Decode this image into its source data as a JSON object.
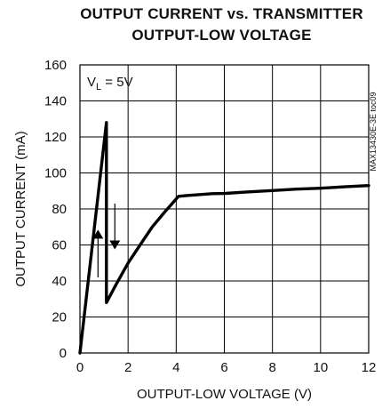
{
  "chart_data": {
    "type": "line",
    "title_line1": "OUTPUT CURRENT vs. TRANSMITTER",
    "title_line2": "OUTPUT-LOW VOLTAGE",
    "xlabel": "OUTPUT-LOW VOLTAGE (V)",
    "ylabel": "OUTPUT CURRENT (mA)",
    "xlim": [
      0,
      12
    ],
    "ylim": [
      0,
      160
    ],
    "xticks": [
      0,
      2,
      4,
      6,
      8,
      10,
      12
    ],
    "yticks": [
      0,
      20,
      40,
      60,
      80,
      100,
      120,
      140,
      160
    ],
    "grid": true,
    "annotation": "VL = 5V",
    "annotation_parts": {
      "v": "V",
      "sub": "L",
      "rest": " = 5V"
    },
    "side_note": "MAX13430E-3E toc09",
    "series": [
      {
        "points": [
          [
            0,
            0
          ],
          [
            1.1,
            128
          ],
          [
            1.1,
            28
          ],
          [
            1.5,
            38
          ],
          [
            2,
            50
          ],
          [
            2.5,
            60
          ],
          [
            3,
            70
          ],
          [
            3.5,
            78
          ],
          [
            4.1,
            87
          ],
          [
            4.5,
            87.5
          ],
          [
            5,
            88
          ],
          [
            5.5,
            88.5
          ],
          [
            6,
            88.6
          ],
          [
            7,
            89.5
          ],
          [
            8,
            90.2
          ],
          [
            9,
            91
          ],
          [
            10,
            91.5
          ],
          [
            11,
            92.3
          ],
          [
            12,
            93
          ]
        ],
        "color": "#000000"
      }
    ],
    "arrows": [
      {
        "x": 0.75,
        "y_from": 42,
        "y_to": 66,
        "direction": "up"
      },
      {
        "x": 1.45,
        "y_from": 83,
        "y_to": 60,
        "direction": "down"
      }
    ]
  }
}
